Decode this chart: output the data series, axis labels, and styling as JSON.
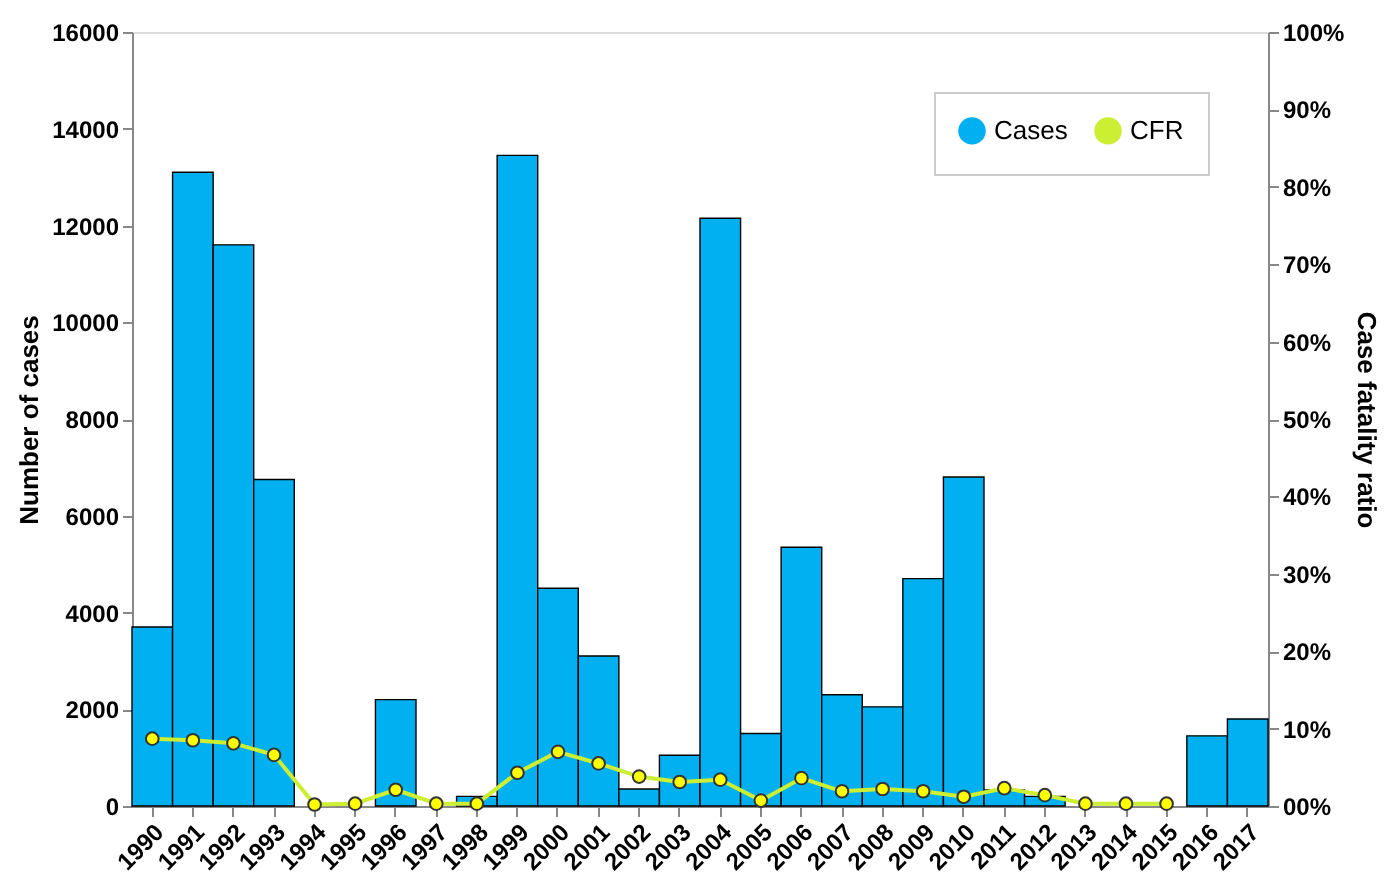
{
  "chart_data": {
    "type": "bar",
    "categories": [
      "1990",
      "1991",
      "1992",
      "1993",
      "1994",
      "1995",
      "1996",
      "1997",
      "1998",
      "1999",
      "2000",
      "2001",
      "2002",
      "2003",
      "2004",
      "2005",
      "2006",
      "2007",
      "2008",
      "2009",
      "2010",
      "2011",
      "2012",
      "2013",
      "2014",
      "2015",
      "2016",
      "2017"
    ],
    "ylabel": "Number of cases",
    "y2label": "Case fatality ratio",
    "ylim": [
      0,
      16000
    ],
    "yticks": [
      0,
      2000,
      4000,
      6000,
      8000,
      10000,
      12000,
      14000,
      16000
    ],
    "y2lim": [
      0,
      100
    ],
    "y2ticks": [
      {
        "value": 0,
        "label": "00%"
      },
      {
        "value": 10,
        "label": "10%"
      },
      {
        "value": 20,
        "label": "20%"
      },
      {
        "value": 30,
        "label": "30%"
      },
      {
        "value": 40,
        "label": "40%"
      },
      {
        "value": 50,
        "label": "50%"
      },
      {
        "value": 60,
        "label": "60%"
      },
      {
        "value": 70,
        "label": "70%"
      },
      {
        "value": 80,
        "label": "80%"
      },
      {
        "value": 90,
        "label": "90%"
      },
      {
        "value": 100,
        "label": "100%"
      }
    ],
    "legend": "top right",
    "grid": false,
    "series": [
      {
        "name": "Cases",
        "color": "#00b0f0",
        "values": [
          3700,
          13100,
          11600,
          6750,
          0,
          0,
          2200,
          0,
          200,
          13450,
          4500,
          3100,
          350,
          1050,
          12150,
          1500,
          5350,
          2300,
          2050,
          4700,
          6800,
          330,
          200,
          0,
          0,
          0,
          1450,
          1800
        ]
      },
      {
        "name": "CFR",
        "type": "line",
        "axis": "y2",
        "marker": "circle",
        "color": "#ccee33",
        "values": [
          8.7,
          8.5,
          8.1,
          6.6,
          0.2,
          0.3,
          2.1,
          0.3,
          0.3,
          4.3,
          7.0,
          5.5,
          3.8,
          3.1,
          3.4,
          0.7,
          3.6,
          1.9,
          2.2,
          1.9,
          1.2,
          2.3,
          1.4,
          0.3,
          0.3,
          0.3,
          null,
          null
        ]
      }
    ]
  }
}
